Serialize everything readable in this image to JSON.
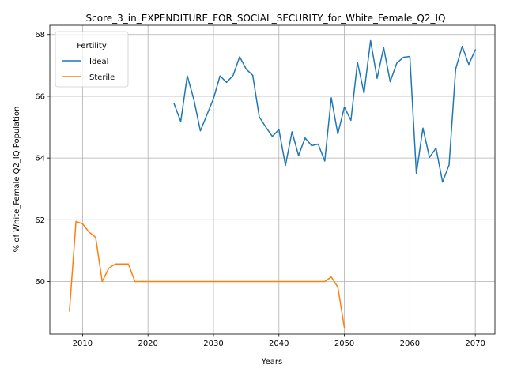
{
  "chart_data": {
    "type": "line",
    "title": "Score_3_in_EXPENDITURE_FOR_SOCIAL_SECURITY_for_White_Female_Q2_IQ",
    "xlabel": "Years",
    "ylabel": "% of White_Female Q2_IQ Population",
    "xlim": [
      2005,
      2073
    ],
    "ylim": [
      58.3,
      68.3
    ],
    "xticks": [
      2010,
      2020,
      2030,
      2040,
      2050,
      2060,
      2070
    ],
    "yticks": [
      60,
      62,
      64,
      66,
      68
    ],
    "grid": true,
    "legend": {
      "title": "Fertility",
      "placement": "top-left"
    },
    "series": [
      {
        "name": "Ideal",
        "color": "#1f77b4",
        "x": [
          2024,
          2025,
          2026,
          2027,
          2028,
          2029,
          2030,
          2031,
          2032,
          2033,
          2034,
          2035,
          2036,
          2037,
          2038,
          2039,
          2040,
          2041,
          2042,
          2043,
          2044,
          2045,
          2046,
          2047,
          2048,
          2049,
          2050,
          2051,
          2052,
          2053,
          2054,
          2055,
          2056,
          2057,
          2058,
          2059,
          2060,
          2061,
          2062,
          2063,
          2064,
          2065,
          2066,
          2067,
          2068,
          2069,
          2070
        ],
        "y": [
          65.75,
          65.18,
          66.66,
          65.9,
          64.88,
          65.4,
          65.92,
          66.66,
          66.45,
          66.67,
          67.28,
          66.88,
          66.68,
          65.33,
          65.0,
          64.7,
          64.92,
          63.76,
          64.85,
          64.08,
          64.65,
          64.4,
          64.45,
          63.9,
          65.95,
          64.78,
          65.65,
          65.22,
          67.1,
          66.1,
          67.8,
          66.58,
          67.58,
          66.47,
          67.07,
          67.26,
          67.29,
          63.5,
          64.97,
          64.02,
          64.32,
          63.22,
          63.78,
          66.88,
          67.62,
          67.03,
          67.5
        ]
      },
      {
        "name": "Sterile",
        "color": "#ff7f0e",
        "x": [
          2008,
          2009,
          2010,
          2011,
          2012,
          2013,
          2014,
          2015,
          2016,
          2017,
          2018,
          2019,
          2020,
          2021,
          2022,
          2023,
          2024,
          2025,
          2026,
          2027,
          2028,
          2029,
          2030,
          2031,
          2032,
          2033,
          2034,
          2035,
          2036,
          2037,
          2038,
          2039,
          2040,
          2041,
          2042,
          2043,
          2044,
          2045,
          2046,
          2047,
          2048,
          2049,
          2050
        ],
        "y": [
          59.05,
          61.95,
          61.87,
          61.6,
          61.43,
          60.0,
          60.43,
          60.57,
          60.57,
          60.57,
          60.0,
          60.0,
          60.0,
          60.0,
          60.0,
          60.0,
          60.0,
          60.0,
          60.0,
          60.0,
          60.0,
          60.0,
          60.0,
          60.0,
          60.0,
          60.0,
          60.0,
          60.0,
          60.0,
          60.0,
          60.0,
          60.0,
          60.0,
          60.0,
          60.0,
          60.0,
          60.0,
          60.0,
          60.0,
          60.0,
          60.15,
          59.82,
          58.5
        ]
      }
    ]
  }
}
